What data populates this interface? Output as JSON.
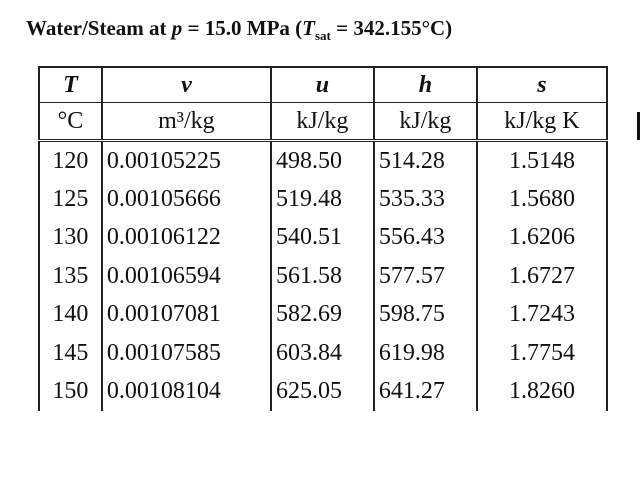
{
  "title": {
    "prefix": "Water/Steam at ",
    "p_symbol": "p",
    "p_value": " = 15.0 MPa (",
    "tsat_symbol": "T",
    "tsat_sub": "sat",
    "tsat_value": " = 342.155°C)"
  },
  "table": {
    "headers": {
      "symbols": [
        "T",
        "v",
        "u",
        "h",
        "s"
      ],
      "units": [
        "°C",
        "m³/kg",
        "kJ/kg",
        "kJ/kg",
        "kJ/kg K"
      ]
    },
    "rows": [
      [
        "120",
        "0.00105225",
        "498.50",
        "514.28",
        "1.5148"
      ],
      [
        "125",
        "0.00105666",
        "519.48",
        "535.33",
        "1.5680"
      ],
      [
        "130",
        "0.00106122",
        "540.51",
        "556.43",
        "1.6206"
      ],
      [
        "135",
        "0.00106594",
        "561.58",
        "577.57",
        "1.6727"
      ],
      [
        "140",
        "0.00107081",
        "582.69",
        "598.75",
        "1.7243"
      ],
      [
        "145",
        "0.00107585",
        "603.84",
        "619.98",
        "1.7754"
      ],
      [
        "150",
        "0.00108104",
        "625.05",
        "641.27",
        "1.8260"
      ]
    ]
  }
}
